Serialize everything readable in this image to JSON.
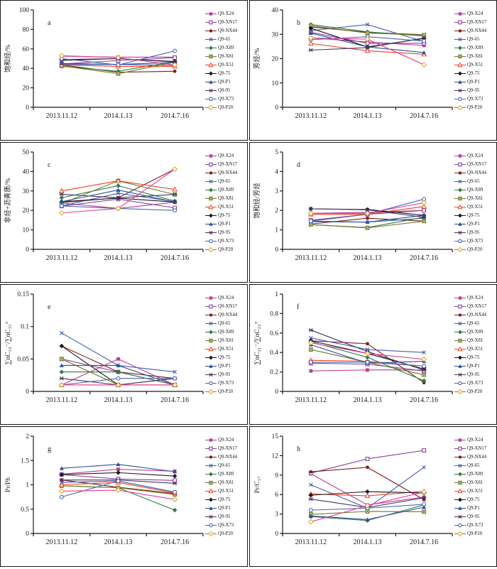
{
  "figure": {
    "x_categories": [
      "2013.11.12",
      "2014.1.13",
      "2014.7.16"
    ],
    "series_styles": [
      {
        "name": "Q9-X24",
        "color": "#be3c96",
        "marker": "sq"
      },
      {
        "name": "Q9-XN17",
        "color": "#8a3f9e",
        "marker": "sqo"
      },
      {
        "name": "Q9-NX44",
        "color": "#7e1f1f",
        "marker": "ci"
      },
      {
        "name": "Q9-65",
        "color": "#4060b8",
        "marker": "x"
      },
      {
        "name": "Q9-X89",
        "color": "#2e7d46",
        "marker": "di"
      },
      {
        "name": "Q9-X81",
        "color": "#6e7a26",
        "marker": "bx"
      },
      {
        "name": "Q9-X51",
        "color": "#f04020",
        "marker": "tro"
      },
      {
        "name": "Q9-75",
        "color": "#1a1a1a",
        "marker": "di"
      },
      {
        "name": "Q9-P1",
        "color": "#2f4d9e",
        "marker": "tr"
      },
      {
        "name": "Q9-95",
        "color": "#4a3560",
        "marker": "xl"
      },
      {
        "name": "Q9-X73",
        "color": "#4668b4",
        "marker": "cio"
      },
      {
        "name": "Q9-P20",
        "color": "#e83c9b",
        "marker": "dio",
        "marker_color": "#e8a020"
      }
    ]
  },
  "chart_data": [
    {
      "type": "line",
      "panel_label": "a",
      "ylabel": "饱和烃/%",
      "ylim": [
        0,
        100
      ],
      "yticks": [
        0,
        20,
        40,
        60,
        80,
        100
      ],
      "ytick_labels": [
        "0",
        "20",
        "40",
        "60",
        "80",
        "100"
      ],
      "x": [
        "2013.11.12",
        "2014.1.13",
        "2014.7.16"
      ],
      "series": [
        {
          "name": "Q9-X24",
          "values": [
            52.5,
            51.5,
            51.5
          ]
        },
        {
          "name": "Q9-XN17",
          "values": [
            44.5,
            48.0,
            51.0
          ]
        },
        {
          "name": "Q9-NX44",
          "values": [
            43.5,
            36.0,
            37.0
          ]
        },
        {
          "name": "Q9-65",
          "values": [
            44.0,
            44.0,
            43.0
          ]
        },
        {
          "name": "Q9-X89",
          "values": [
            42.0,
            37.0,
            47.0
          ]
        },
        {
          "name": "Q9-X81",
          "values": [
            42.5,
            34.5,
            46.5
          ]
        },
        {
          "name": "Q9-X51",
          "values": [
            43.5,
            42.0,
            42.0
          ]
        },
        {
          "name": "Q9-75",
          "values": [
            49.0,
            50.0,
            47.0
          ]
        },
        {
          "name": "Q9-P1",
          "values": [
            45.0,
            44.0,
            46.0
          ]
        },
        {
          "name": "Q9-95",
          "values": [
            48.0,
            50.0,
            46.5
          ]
        },
        {
          "name": "Q9-X73",
          "values": [
            50.0,
            43.5,
            58.0
          ]
        },
        {
          "name": "Q9-P20",
          "values": [
            53.0,
            51.0,
            43.5
          ]
        }
      ]
    },
    {
      "type": "line",
      "panel_label": "b",
      "ylabel": "芳烃/%",
      "ylim": [
        0,
        40
      ],
      "yticks": [
        0,
        10,
        20,
        30,
        40
      ],
      "ytick_labels": [
        "0",
        "10",
        "20",
        "30",
        "40"
      ],
      "x": [
        "2013.11.12",
        "2014.1.13",
        "2014.7.16"
      ],
      "series": [
        {
          "name": "Q9-X24",
          "values": [
            28.5,
            26.8,
            25.4
          ]
        },
        {
          "name": "Q9-XN17",
          "values": [
            30.8,
            26.3,
            26.3
          ]
        },
        {
          "name": "Q9-NX44",
          "values": [
            33.0,
            30.8,
            29.8
          ]
        },
        {
          "name": "Q9-65",
          "values": [
            31.5,
            34.0,
            27.0
          ]
        },
        {
          "name": "Q9-X89",
          "values": [
            34.0,
            31.0,
            29.3
          ]
        },
        {
          "name": "Q9-X81",
          "values": [
            33.5,
            30.5,
            29.7
          ]
        },
        {
          "name": "Q9-X51",
          "values": [
            26.2,
            23.2,
            21.8
          ]
        },
        {
          "name": "Q9-75",
          "values": [
            32.5,
            24.8,
            28.3
          ]
        },
        {
          "name": "Q9-P1",
          "values": [
            30.5,
            24.8,
            22.5
          ]
        },
        {
          "name": "Q9-95",
          "values": [
            23.5,
            24.5,
            28.5
          ]
        },
        {
          "name": "Q9-X73",
          "values": [
            27.8,
            29.0,
            27.2
          ]
        },
        {
          "name": "Q9-P20",
          "values": [
            28.5,
            28.0,
            17.5
          ]
        }
      ]
    },
    {
      "type": "line",
      "panel_label": "c",
      "ylabel": "非烃+沥青质/%",
      "ylim": [
        0,
        50
      ],
      "yticks": [
        0,
        10,
        20,
        30,
        40,
        50
      ],
      "ytick_labels": [
        "0",
        "10",
        "20",
        "30",
        "40",
        "50"
      ],
      "x": [
        "2013.11.12",
        "2014.1.13",
        "2014.7.16"
      ],
      "series": [
        {
          "name": "Q9-X24",
          "values": [
            23.8,
            21.0,
            24.2
          ]
        },
        {
          "name": "Q9-XN17",
          "values": [
            22.2,
            25.8,
            21.3
          ]
        },
        {
          "name": "Q9-NX44",
          "values": [
            24.0,
            26.5,
            41.2
          ]
        },
        {
          "name": "Q9-65",
          "values": [
            22.3,
            28.8,
            24.5
          ]
        },
        {
          "name": "Q9-X89",
          "values": [
            26.5,
            32.7,
            24.8
          ]
        },
        {
          "name": "Q9-X81",
          "values": [
            23.5,
            35.2,
            28.2
          ]
        },
        {
          "name": "Q9-X51",
          "values": [
            30.0,
            35.2,
            30.8
          ]
        },
        {
          "name": "Q9-75",
          "values": [
            24.5,
            26.3,
            24.3
          ]
        },
        {
          "name": "Q9-P1",
          "values": [
            24.5,
            30.5,
            24.3
          ]
        },
        {
          "name": "Q9-95",
          "values": [
            28.3,
            26.5,
            28.2
          ]
        },
        {
          "name": "Q9-X73",
          "values": [
            22.3,
            21.0,
            20.0
          ]
        },
        {
          "name": "Q9-P20",
          "values": [
            18.7,
            21.0,
            41.2
          ]
        }
      ]
    },
    {
      "type": "line",
      "panel_label": "d",
      "ylabel": "饱和烃/芳烃",
      "ylim": [
        0,
        5
      ],
      "yticks": [
        0,
        1,
        2,
        3,
        4,
        5
      ],
      "ytick_labels": [
        "0",
        "1",
        "2",
        "3",
        "4",
        "5"
      ],
      "x": [
        "2013.11.12",
        "2014.1.13",
        "2014.7.16"
      ],
      "series": [
        {
          "name": "Q9-X24",
          "values": [
            1.85,
            1.9,
            2.0
          ]
        },
        {
          "name": "Q9-XN17",
          "values": [
            1.5,
            1.8,
            2.0
          ]
        },
        {
          "name": "Q9-NX44",
          "values": [
            1.3,
            1.6,
            1.45
          ]
        },
        {
          "name": "Q9-65",
          "values": [
            1.42,
            1.4,
            1.6
          ]
        },
        {
          "name": "Q9-X89",
          "values": [
            1.27,
            1.12,
            1.65
          ]
        },
        {
          "name": "Q9-X81",
          "values": [
            1.27,
            1.1,
            1.45
          ]
        },
        {
          "name": "Q9-X51",
          "values": [
            1.8,
            1.8,
            2.2
          ]
        },
        {
          "name": "Q9-75",
          "values": [
            2.08,
            2.05,
            1.75
          ]
        },
        {
          "name": "Q9-P1",
          "values": [
            1.45,
            1.4,
            1.75
          ]
        },
        {
          "name": "Q9-95",
          "values": [
            2.08,
            2.03,
            1.65
          ]
        },
        {
          "name": "Q9-X73",
          "values": [
            1.45,
            1.8,
            2.58
          ]
        },
        {
          "name": "Q9-P20",
          "values": [
            1.85,
            1.85,
            2.4
          ]
        }
      ]
    },
    {
      "type": "line",
      "panel_label": "e",
      "ylabel": "∑nC₁₄⁻/∑nC₁₅⁺",
      "ylim": [
        0,
        0.15
      ],
      "yticks": [
        0,
        0.05,
        0.1,
        0.15
      ],
      "ytick_labels": [
        "0",
        "0.05",
        "0.1",
        "0.15"
      ],
      "x": [
        "2013.11.12",
        "2014.1.13",
        "2014.7.16"
      ],
      "series": [
        {
          "name": "Q9-X24",
          "values": [
            0.01,
            0.05,
            0.01
          ]
        },
        {
          "name": "Q9-XN17",
          "values": [
            0.05,
            0.03,
            0.01
          ]
        },
        {
          "name": "Q9-NX44",
          "values": [
            0.07,
            0.03,
            0.02
          ]
        },
        {
          "name": "Q9-65",
          "values": [
            0.09,
            0.04,
            0.03
          ]
        },
        {
          "name": "Q9-X89",
          "values": [
            0.03,
            0.03,
            0.01
          ]
        },
        {
          "name": "Q9-X81",
          "values": [
            0.05,
            0.01,
            0.01
          ]
        },
        {
          "name": "Q9-X51",
          "values": [
            0.01,
            0.01,
            0.01
          ]
        },
        {
          "name": "Q9-75",
          "values": [
            0.07,
            0.01,
            0.02
          ]
        },
        {
          "name": "Q9-P1",
          "values": [
            0.04,
            0.04,
            0.01
          ]
        },
        {
          "name": "Q9-95",
          "values": [
            0.02,
            0.01,
            0.02
          ]
        },
        {
          "name": "Q9-X73",
          "values": [
            0.01,
            0.02,
            0.02
          ]
        },
        {
          "name": "Q9-P20",
          "values": [
            0.01,
            0.01,
            0.01
          ]
        }
      ]
    },
    {
      "type": "line",
      "panel_label": "f",
      "ylabel": "∑nC₂₁⁻/∑nC₂₂⁺",
      "ylim": [
        0,
        1
      ],
      "yticks": [
        0,
        0.2,
        0.4,
        0.6,
        0.8,
        1
      ],
      "ytick_labels": [
        "0",
        "0.2",
        "0.4",
        "0.6",
        "0.8",
        "1"
      ],
      "x": [
        "2013.11.12",
        "2014.1.13",
        "2014.7.16"
      ],
      "series": [
        {
          "name": "Q9-X24",
          "values": [
            0.21,
            0.22,
            0.22
          ]
        },
        {
          "name": "Q9-XN17",
          "values": [
            0.29,
            0.28,
            0.21
          ]
        },
        {
          "name": "Q9-NX44",
          "values": [
            0.52,
            0.49,
            0.09
          ]
        },
        {
          "name": "Q9-65",
          "values": [
            0.55,
            0.43,
            0.4
          ]
        },
        {
          "name": "Q9-X89",
          "values": [
            0.51,
            0.35,
            0.11
          ]
        },
        {
          "name": "Q9-X81",
          "values": [
            0.43,
            0.3,
            0.17
          ]
        },
        {
          "name": "Q9-X51",
          "values": [
            0.32,
            0.31,
            0.26
          ]
        },
        {
          "name": "Q9-75",
          "values": [
            0.52,
            0.39,
            0.23
          ]
        },
        {
          "name": "Q9-P1",
          "values": [
            0.48,
            0.29,
            0.31
          ]
        },
        {
          "name": "Q9-95",
          "values": [
            0.63,
            0.41,
            0.22
          ]
        },
        {
          "name": "Q9-X73",
          "values": [
            0.3,
            0.3,
            0.26
          ]
        },
        {
          "name": "Q9-P20",
          "values": [
            0.5,
            0.39,
            0.33
          ]
        }
      ]
    },
    {
      "type": "line",
      "panel_label": "g",
      "ylabel": "Pr/Ph",
      "ylim": [
        0,
        2
      ],
      "yticks": [
        0,
        0.5,
        1,
        1.5,
        2
      ],
      "ytick_labels": [
        "0",
        "0.5",
        "1",
        "1.5",
        "2"
      ],
      "x": [
        "2013.11.12",
        "2014.1.13",
        "2014.7.16"
      ],
      "series": [
        {
          "name": "Q9-X24",
          "values": [
            1.22,
            1.32,
            1.28
          ]
        },
        {
          "name": "Q9-XN17",
          "values": [
            1.21,
            1.12,
            1.09
          ]
        },
        {
          "name": "Q9-NX44",
          "values": [
            1.1,
            0.95,
            0.82
          ]
        },
        {
          "name": "Q9-65",
          "values": [
            1.05,
            1.08,
            0.85
          ]
        },
        {
          "name": "Q9-X89",
          "values": [
            0.98,
            0.94,
            0.48
          ]
        },
        {
          "name": "Q9-X81",
          "values": [
            0.98,
            0.94,
            0.8
          ]
        },
        {
          "name": "Q9-X51",
          "values": [
            1.0,
            1.05,
            0.83
          ]
        },
        {
          "name": "Q9-75",
          "values": [
            1.21,
            1.25,
            1.18
          ]
        },
        {
          "name": "Q9-P1",
          "values": [
            1.34,
            1.42,
            1.27
          ]
        },
        {
          "name": "Q9-95",
          "values": [
            1.1,
            1.1,
            1.03
          ]
        },
        {
          "name": "Q9-X73",
          "values": [
            0.75,
            1.08,
            0.85
          ]
        },
        {
          "name": "Q9-P20",
          "values": [
            0.87,
            0.89,
            0.7
          ]
        }
      ]
    },
    {
      "type": "line",
      "panel_label": "h",
      "ylabel": "Pr/C₁₇",
      "ylim": [
        0,
        15
      ],
      "yticks": [
        0,
        3,
        6,
        9,
        12,
        15
      ],
      "ytick_labels": [
        "0",
        "3",
        "6",
        "9",
        "12",
        "15"
      ],
      "x": [
        "2013.11.12",
        "2014.1.13",
        "2014.7.16"
      ],
      "series": [
        {
          "name": "Q9-X24",
          "values": [
            9.2,
            4.4,
            5.6
          ]
        },
        {
          "name": "Q9-XN17",
          "values": [
            9.3,
            11.5,
            12.8
          ]
        },
        {
          "name": "Q9-NX44",
          "values": [
            9.5,
            10.2,
            5.2
          ]
        },
        {
          "name": "Q9-65",
          "values": [
            7.5,
            3.9,
            10.2
          ]
        },
        {
          "name": "Q9-X89",
          "values": [
            2.6,
            2.0,
            4.4
          ]
        },
        {
          "name": "Q9-X81",
          "values": [
            2.95,
            3.4,
            3.35
          ]
        },
        {
          "name": "Q9-X51",
          "values": [
            6.1,
            5.8,
            6.5
          ]
        },
        {
          "name": "Q9-75",
          "values": [
            5.9,
            6.45,
            6.25
          ]
        },
        {
          "name": "Q9-P1",
          "values": [
            2.7,
            2.15,
            4.05
          ]
        },
        {
          "name": "Q9-95",
          "values": [
            5.3,
            4.0,
            5.5
          ]
        },
        {
          "name": "Q9-X73",
          "values": [
            3.6,
            3.9,
            4.5
          ]
        },
        {
          "name": "Q9-P20",
          "values": [
            1.8,
            4.3,
            6.4
          ]
        }
      ]
    }
  ]
}
